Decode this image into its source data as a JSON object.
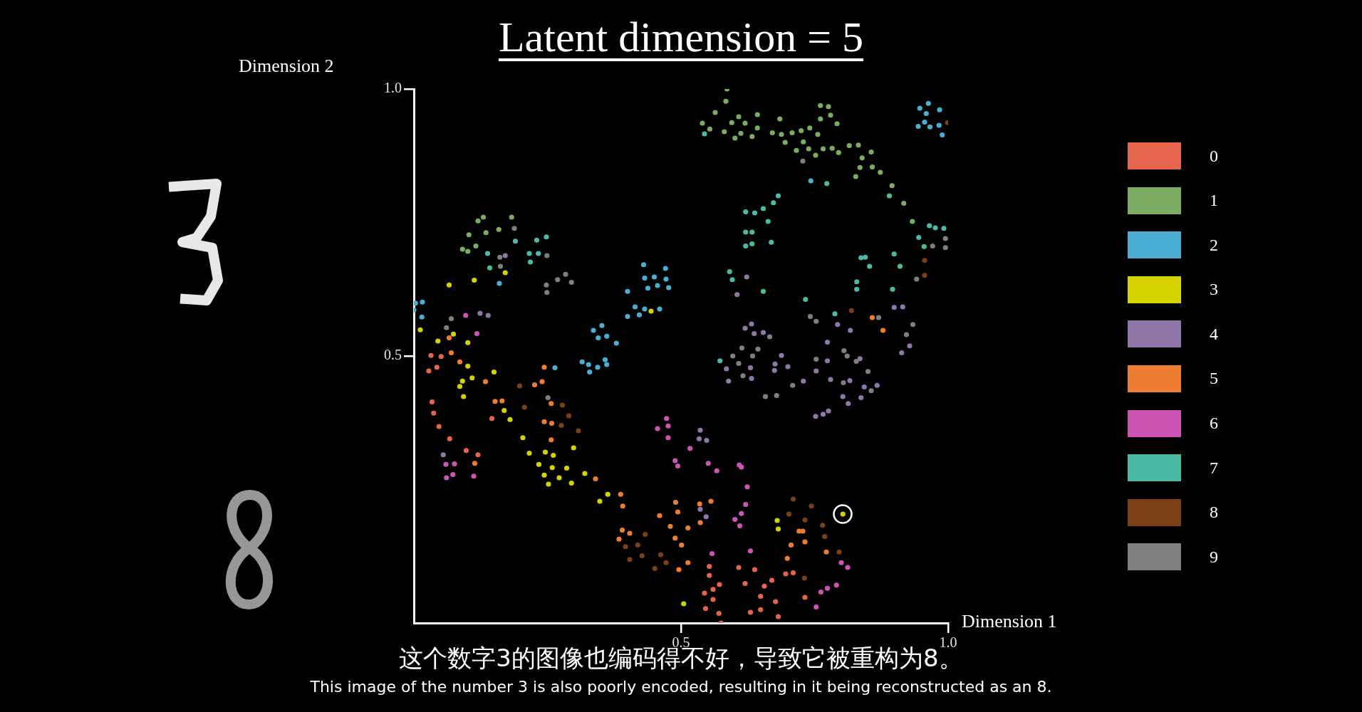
{
  "chart_data": {
    "type": "scatter",
    "title": "Latent dimension = 5",
    "xlabel": "Dimension 1",
    "ylabel": "Dimension 2",
    "annotations": [
      "这个数字3的图像也编码得不好，导致它被重构为8。",
      "This image of the number 3 is also poorly encoded, resulting in it being reconstructed as an 8."
    ],
    "xlim": [
      0,
      1
    ],
    "ylim": [
      0,
      1
    ],
    "xticks": [
      {
        "value": 0.5,
        "label": "0.5"
      },
      {
        "value": 1,
        "label": "1.0"
      }
    ],
    "yticks": [
      {
        "value": 0.5,
        "label": "0.5"
      },
      {
        "value": 1,
        "label": "1.0"
      }
    ],
    "grid": false,
    "legend": "right",
    "marker": "circle",
    "series": [
      {
        "name": "0",
        "color": "#e4654c",
        "x": [
          0.032,
          0.051,
          0.028,
          0.043,
          0.034,
          0.037,
          0.047,
          0.067,
          0.098,
          0.12,
          0.146,
          0.553,
          0.553,
          0.608,
          0.638,
          0.572,
          0.544,
          0.56,
          0.56,
          0.546,
          0.571,
          0.575,
          0.62,
          0.656,
          0.67,
          0.696,
          0.71,
          0.649,
          0.677,
          0.63,
          0.649,
          0.682,
          0.732
        ],
        "values": [
          0.501,
          0.499,
          0.472,
          0.479,
          0.414,
          0.393,
          0.368,
          0.345,
          0.323,
          0.315,
          0.383,
          0.106,
          0.089,
          0.104,
          0.1,
          0.072,
          0.056,
          0.063,
          0.044,
          0.027,
          0.018,
          0.0,
          0.074,
          0.069,
          0.08,
          0.092,
          0.094,
          0.05,
          0.04,
          0.02,
          0.025,
          0.012,
          0.048
        ]
      },
      {
        "name": "1",
        "color": "#7aac62",
        "x": [
          0.13,
          0.12,
          0.183,
          0.103,
          0.135,
          0.159,
          0.116,
          0.091,
          0.101,
          0.586,
          0.584,
          0.564,
          0.54,
          0.554,
          0.581,
          0.595,
          0.608,
          0.62,
          0.612,
          0.601,
          0.633,
          0.643,
          0.643,
          0.671,
          0.685,
          0.688,
          0.708,
          0.695,
          0.725,
          0.741,
          0.729,
          0.716,
          0.739,
          0.756,
          0.761,
          0.761,
          0.776,
          0.78,
          0.792,
          0.752,
          0.766,
          0.783,
          0.795,
          0.815,
          0.832,
          0.839,
          0.856,
          0.835,
          0.858,
          0.873,
          0.827,
          0.895,
          0.917,
          0.933
        ],
        "values": [
          0.76,
          0.753,
          0.76,
          0.727,
          0.731,
          0.737,
          0.706,
          0.7,
          0.696,
          1.0,
          0.977,
          0.956,
          0.936,
          0.925,
          0.92,
          0.937,
          0.948,
          0.936,
          0.917,
          0.908,
          0.911,
          0.952,
          0.927,
          0.918,
          0.944,
          0.915,
          0.918,
          0.9,
          0.922,
          0.927,
          0.901,
          0.885,
          0.888,
          0.915,
          0.944,
          0.969,
          0.967,
          0.951,
          0.935,
          0.876,
          0.888,
          0.889,
          0.881,
          0.894,
          0.895,
          0.871,
          0.882,
          0.853,
          0.854,
          0.844,
          0.836,
          0.819,
          0.786,
          0.752
        ]
      },
      {
        "name": "2",
        "color": "#4aaed2",
        "x": [
          0.16,
          0.003,
          0.016,
          0.0,
          0.015,
          0.43,
          0.471,
          0.432,
          0.45,
          0.472,
          0.438,
          0.456,
          0.477,
          0.4,
          0.414,
          0.432,
          0.46,
          0.4,
          0.422,
          0.352,
          0.336,
          0.345,
          0.361,
          0.379,
          0.264,
          0.315,
          0.327,
          0.344,
          0.329,
          0.358,
          0.361,
          0.743,
          0.947,
          0.963,
          0.984,
          0.959,
          0.956,
          0.944,
          0.966,
          0.983,
          0.989
        ],
        "values": [
          0.636,
          0.599,
          0.601,
          0.586,
          0.573,
          0.671,
          0.664,
          0.646,
          0.648,
          0.644,
          0.627,
          0.632,
          0.628,
          0.621,
          0.592,
          0.588,
          0.588,
          0.574,
          0.577,
          0.557,
          0.548,
          0.534,
          0.537,
          0.524,
          0.478,
          0.489,
          0.484,
          0.479,
          0.47,
          0.493,
          0.484,
          0.828,
          0.964,
          0.973,
          0.961,
          0.954,
          0.938,
          0.93,
          0.929,
          0.932,
          0.914
        ]
      },
      {
        "name": "3",
        "color": "#d6d200",
        "x": [
          0.171,
          0.113,
          0.066,
          0.012,
          0.074,
          0.045,
          0.101,
          0.444,
          0.101,
          0.15,
          0.091,
          0.109,
          0.086,
          0.093,
          0.169,
          0.18,
          0.204,
          0.216,
          0.246,
          0.261,
          0.234,
          0.259,
          0.286,
          0.299,
          0.244,
          0.272,
          0.295,
          0.252,
          0.32,
          0.363,
          0.348,
          0.505,
          0.68,
          0.682,
          0.803
        ],
        "values": [
          0.656,
          0.642,
          0.633,
          0.549,
          0.541,
          0.528,
          0.525,
          0.584,
          0.481,
          0.47,
          0.453,
          0.459,
          0.443,
          0.424,
          0.398,
          0.381,
          0.347,
          0.318,
          0.32,
          0.314,
          0.297,
          0.291,
          0.29,
          0.328,
          0.277,
          0.272,
          0.262,
          0.26,
          0.28,
          0.241,
          0.228,
          0.036,
          0.192,
          0.176,
          0.204
        ]
      },
      {
        "name": "4",
        "color": "#9077aa",
        "x": [
          0.171,
          0.124,
          0.139,
          0.055,
          0.623,
          0.605,
          0.899,
          0.915,
          0.793,
          0.817,
          0.632,
          0.62,
          0.637,
          0.654,
          0.774,
          0.688,
          0.928,
          0.913,
          0.835,
          0.774,
          0.585,
          0.589,
          0.63,
          0.632,
          0.676,
          0.675,
          0.7,
          0.729,
          0.753,
          0.78,
          0.816,
          0.843,
          0.867,
          0.803,
          0.813,
          0.837,
          0.752,
          0.766,
          0.776,
          0.536,
          0.534,
          0.548,
          0.536,
          0.547
        ],
        "values": [
          0.688,
          0.58,
          0.576,
          0.315,
          0.648,
          0.615,
          0.591,
          0.592,
          0.559,
          0.548,
          0.56,
          0.552,
          0.542,
          0.544,
          0.526,
          0.501,
          0.519,
          0.506,
          0.495,
          0.491,
          0.476,
          0.453,
          0.478,
          0.458,
          0.485,
          0.473,
          0.48,
          0.453,
          0.472,
          0.456,
          0.454,
          0.442,
          0.445,
          0.424,
          0.411,
          0.422,
          0.387,
          0.391,
          0.397,
          0.361,
          0.345,
          0.342,
          0.213,
          0.199
        ]
      },
      {
        "name": "5",
        "color": "#ee7d32",
        "x": [
          0.086,
          0.134,
          0.152,
          0.165,
          0.244,
          0.226,
          0.24,
          0.257,
          0.244,
          0.258,
          0.257,
          0.114,
          0.34,
          0.387,
          0.391,
          0.46,
          0.49,
          0.494,
          0.48,
          0.489,
          0.501,
          0.513,
          0.513,
          0.496,
          0.39,
          0.404,
          0.384,
          0.066,
          0.07,
          0.858,
          0.878,
          0.535,
          0.556,
          0.536,
          0.721,
          0.728,
          0.706,
          0.732,
          0.699,
          0.772
        ],
        "values": [
          0.489,
          0.452,
          0.415,
          0.416,
          0.479,
          0.446,
          0.452,
          0.411,
          0.377,
          0.374,
          0.343,
          0.299,
          0.27,
          0.241,
          0.219,
          0.201,
          0.226,
          0.208,
          0.181,
          0.159,
          0.146,
          0.178,
          0.113,
          0.1,
          0.174,
          0.168,
          0.157,
          0.534,
          0.506,
          0.572,
          0.548,
          0.223,
          0.228,
          0.188,
          0.172,
          0.172,
          0.146,
          0.152,
          0.121,
          0.133
        ]
      },
      {
        "name": "6",
        "color": "#cc55b4",
        "x": [
          0.097,
          0.118,
          0.06,
          0.076,
          0.073,
          0.061,
          0.112,
          0.456,
          0.473,
          0.476,
          0.476,
          0.489,
          0.494,
          0.517,
          0.551,
          0.567,
          0.609,
          0.613,
          0.624,
          0.621,
          0.613,
          0.601,
          0.61,
          0.558,
          0.63,
          0.8,
          0.812,
          0.791,
          0.774,
          0.762,
          0.753
        ],
        "values": [
          0.576,
          0.542,
          0.297,
          0.298,
          0.278,
          0.272,
          0.275,
          0.364,
          0.383,
          0.369,
          0.347,
          0.304,
          0.294,
          0.327,
          0.299,
          0.285,
          0.296,
          0.292,
          0.255,
          0.222,
          0.205,
          0.194,
          0.182,
          0.13,
          0.135,
          0.113,
          0.104,
          0.071,
          0.065,
          0.058,
          0.03
        ]
      },
      {
        "name": "7",
        "color": "#4cb9a5",
        "x": [
          0.19,
          0.138,
          0.142,
          0.216,
          0.233,
          0.23,
          0.248,
          0.218,
          0.544,
          0.773,
          0.89,
          0.682,
          0.673,
          0.654,
          0.621,
          0.638,
          0.663,
          0.621,
          0.633,
          0.621,
          0.633,
          0.669,
          0.591,
          0.596,
          0.654,
          0.733,
          0.788,
          0.837,
          0.845,
          0.853,
          0.899,
          0.91,
          0.829,
          0.829,
          0.896,
          0.965,
          0.976,
          0.992,
          0.945,
          0.955,
          0.573
        ],
        "values": [
          0.715,
          0.692,
          0.665,
          0.692,
          0.692,
          0.717,
          0.723,
          0.676,
          0.916,
          0.823,
          0.8,
          0.8,
          0.787,
          0.776,
          0.77,
          0.768,
          0.752,
          0.732,
          0.732,
          0.706,
          0.71,
          0.713,
          0.658,
          0.643,
          0.621,
          0.606,
          0.579,
          0.684,
          0.685,
          0.668,
          0.691,
          0.668,
          0.639,
          0.625,
          0.625,
          0.744,
          0.74,
          0.739,
          0.722,
          0.705,
          0.491
        ]
      },
      {
        "name": "8",
        "color": "#7c3f16",
        "x": [
          0.198,
          0.207,
          0.278,
          0.29,
          0.276,
          0.308,
          0.433,
          0.419,
          0.396,
          0.404,
          0.427,
          0.462,
          0.472,
          0.451,
          0.999,
          0.956,
          0.956,
          0.819,
          0.71,
          0.744,
          0.702,
          0.732,
          0.765,
          0.769,
          0.796,
          0.731
        ],
        "values": [
          0.444,
          0.404,
          0.408,
          0.388,
          0.37,
          0.36,
          0.166,
          0.146,
          0.143,
          0.119,
          0.126,
          0.128,
          0.113,
          0.102,
          0.937,
          0.679,
          0.651,
          0.585,
          0.232,
          0.219,
          0.204,
          0.193,
          0.183,
          0.162,
          0.133,
          0.084
        ]
      },
      {
        "name": "9",
        "color": "#7f7f7f",
        "x": [
          0.188,
          0.161,
          0.162,
          0.249,
          0.284,
          0.269,
          0.295,
          0.248,
          0.249,
          0.07,
          0.061,
          0.251,
          0.728,
          0.995,
          0.971,
          0.995,
          0.941,
          0.742,
          0.753,
          0.87,
          0.934,
          0.922,
          0.666,
          0.614,
          0.644,
          0.597,
          0.634,
          0.805,
          0.811,
          0.753,
          0.828,
          0.608,
          0.616,
          0.658,
          0.679,
          0.709,
          0.804,
          0.856,
          0.85
        ],
        "values": [
          0.739,
          0.685,
          0.668,
          0.688,
          0.653,
          0.643,
          0.638,
          0.633,
          0.619,
          0.57,
          0.553,
          0.422,
          0.865,
          0.72,
          0.706,
          0.703,
          0.644,
          0.574,
          0.565,
          0.572,
          0.559,
          0.54,
          0.536,
          0.515,
          0.513,
          0.5,
          0.5,
          0.51,
          0.5,
          0.494,
          0.49,
          0.486,
          0.463,
          0.424,
          0.426,
          0.445,
          0.45,
          0.435,
          0.471
        ]
      }
    ]
  }
}
